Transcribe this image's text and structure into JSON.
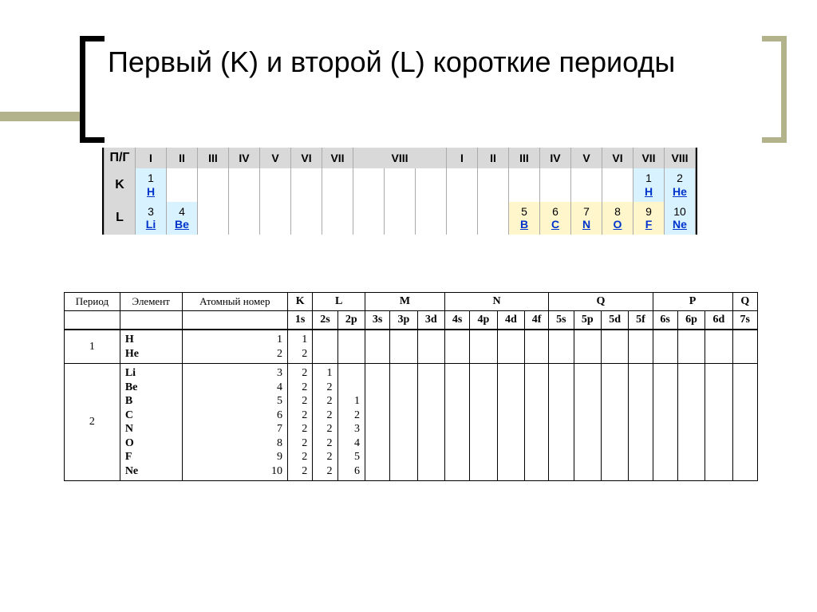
{
  "title": "Первый (K) и второй (L) короткие периоды",
  "periodic": {
    "corner": "П/Г",
    "groups_left": [
      "I",
      "II",
      "III",
      "IV",
      "V",
      "VI",
      "VII"
    ],
    "group_viii": "VIII",
    "groups_right": [
      "I",
      "II",
      "III",
      "IV",
      "V",
      "VI",
      "VII",
      "VIII"
    ],
    "rowLabels": {
      "K": "K",
      "L": "L"
    },
    "K": {
      "left": [
        {
          "n": "1",
          "s": "H",
          "c": "el-blue"
        }
      ],
      "right_tail": [
        {
          "n": "1",
          "s": "H",
          "c": "el-blue"
        },
        {
          "n": "2",
          "s": "He",
          "c": "el-blue"
        }
      ]
    },
    "L": {
      "left": [
        {
          "n": "3",
          "s": "Li",
          "c": "el-blue"
        },
        {
          "n": "4",
          "s": "Be",
          "c": "el-blue"
        }
      ],
      "right_tail": [
        {
          "n": "5",
          "s": "B",
          "c": "el-yellow"
        },
        {
          "n": "6",
          "s": "C",
          "c": "el-yellow"
        },
        {
          "n": "7",
          "s": "N",
          "c": "el-yellow"
        },
        {
          "n": "8",
          "s": "O",
          "c": "el-yellow"
        },
        {
          "n": "9",
          "s": "F",
          "c": "el-yellow"
        },
        {
          "n": "10",
          "s": "Ne",
          "c": "el-blue"
        }
      ]
    }
  },
  "config": {
    "headers": {
      "period": "Период",
      "element": "Элемент",
      "atomic": "Атомный номер"
    },
    "shells": [
      {
        "name": "K",
        "orbs": [
          "1s"
        ]
      },
      {
        "name": "L",
        "orbs": [
          "2s",
          "2p"
        ]
      },
      {
        "name": "M",
        "orbs": [
          "3s",
          "3p",
          "3d"
        ]
      },
      {
        "name": "N",
        "orbs": [
          "4s",
          "4p",
          "4d",
          "4f"
        ]
      },
      {
        "name": "Q",
        "orbs": [
          "5s",
          "5p",
          "5d",
          "5f"
        ]
      },
      {
        "name": "P",
        "orbs": [
          "6s",
          "6p",
          "6d"
        ]
      },
      {
        "name": "Q",
        "orbs": [
          "7s"
        ]
      }
    ],
    "period1": {
      "label": "1",
      "elements": [
        "H",
        "He"
      ],
      "atomic": [
        "1",
        "2"
      ],
      "cols": {
        "1s": [
          "1",
          "2"
        ]
      }
    },
    "period2": {
      "label": "2",
      "elements": [
        "Li",
        "Be",
        "B",
        "C",
        "N",
        "O",
        "F",
        "Ne"
      ],
      "atomic": [
        "3",
        "4",
        "5",
        "6",
        "7",
        "8",
        "9",
        "10"
      ],
      "cols": {
        "1s": [
          "2",
          "2",
          "2",
          "2",
          "2",
          "2",
          "2",
          "2"
        ],
        "2s": [
          "1",
          "2",
          "2",
          "2",
          "2",
          "2",
          "2",
          "2"
        ],
        "2p": [
          "",
          "",
          "1",
          "2",
          "3",
          "4",
          "5",
          "6"
        ]
      }
    }
  },
  "style": {
    "accent": "#b2b38a",
    "link": "#0033cc",
    "el_blue": "#d9f2ff",
    "el_yellow": "#fff6cc",
    "header_grey": "#d9d9d9"
  }
}
